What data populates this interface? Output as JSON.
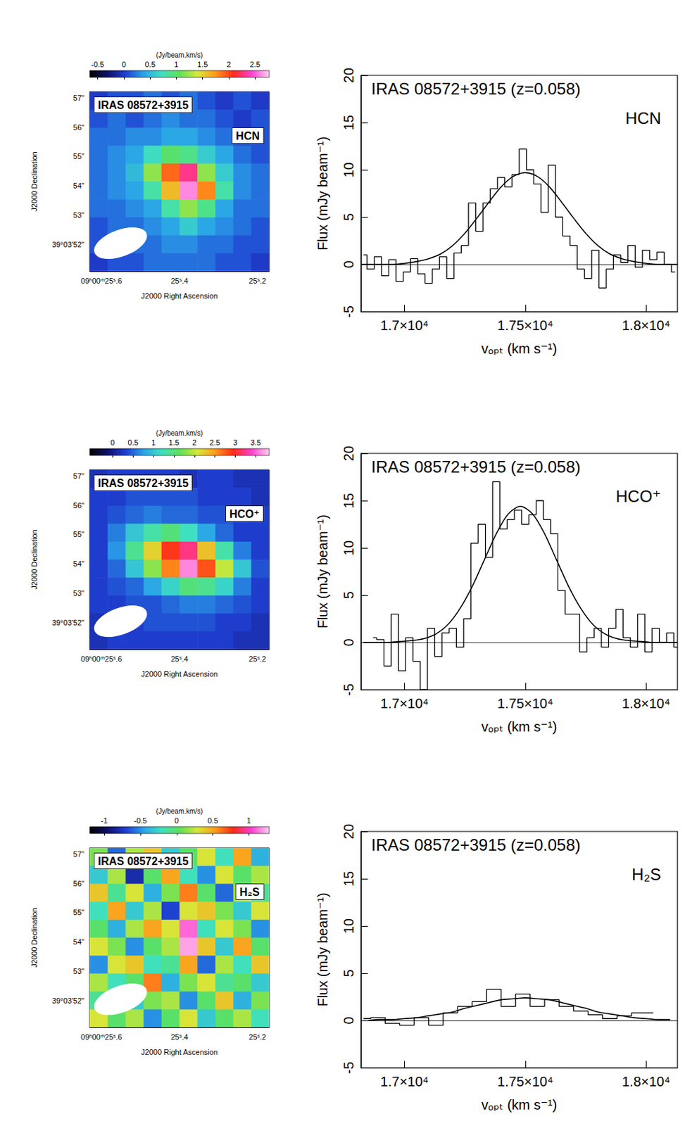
{
  "chart_data": [
    {
      "type": "heatmap",
      "annotations": [
        "IRAS 08572+3915",
        "HCN"
      ],
      "x_label": "J2000 Right Ascension",
      "y_label": "J2000 Declination",
      "xlim": [
        25.63,
        25.17
      ],
      "ylim": [
        51.1,
        57.2
      ],
      "xticks": [
        {
          "value": 25.6,
          "label": "09ʰ00ᵐ25ˢ.6"
        },
        {
          "value": 25.4,
          "label": "25ˢ.4"
        },
        {
          "value": 25.2,
          "label": "25ˢ.2"
        }
      ],
      "yticks": [
        {
          "value": 52,
          "label": "39°03'52\""
        },
        {
          "value": 53,
          "label": "53\""
        },
        {
          "value": 54,
          "label": "54\""
        },
        {
          "value": 55,
          "label": "55\""
        },
        {
          "value": 56,
          "label": "56\""
        },
        {
          "value": 57,
          "label": "57\""
        }
      ],
      "x_edges": [
        25.63,
        25.584,
        25.538,
        25.492,
        25.446,
        25.4,
        25.354,
        25.308,
        25.262,
        25.216,
        25.17
      ],
      "y_edges": [
        57.2,
        56.59,
        55.98,
        55.37,
        54.76,
        54.15,
        53.54,
        52.93,
        52.32,
        51.71,
        51.1
      ],
      "cells": [
        [
          0.0,
          0.1,
          0.1,
          0.2,
          0.1,
          0.2,
          0.1,
          0.0,
          0.1,
          0.0
        ],
        [
          0.1,
          0.2,
          0.1,
          0.2,
          0.3,
          0.2,
          0.2,
          0.1,
          0.0,
          0.1
        ],
        [
          0.2,
          0.2,
          0.3,
          0.3,
          0.4,
          0.4,
          0.3,
          0.2,
          0.1,
          0.1
        ],
        [
          0.2,
          0.3,
          0.4,
          0.7,
          1.0,
          0.9,
          0.6,
          0.4,
          0.2,
          0.1
        ],
        [
          0.2,
          0.3,
          0.5,
          1.2,
          1.9,
          2.3,
          1.2,
          0.6,
          0.3,
          0.2
        ],
        [
          0.2,
          0.3,
          0.4,
          0.8,
          1.6,
          2.6,
          1.8,
          0.8,
          0.3,
          0.2
        ],
        [
          0.2,
          0.2,
          0.3,
          0.4,
          0.8,
          1.2,
          0.9,
          0.4,
          0.2,
          0.2
        ],
        [
          0.1,
          0.2,
          0.2,
          0.3,
          0.4,
          0.6,
          0.4,
          0.3,
          0.2,
          0.1
        ],
        [
          0.1,
          0.1,
          0.2,
          0.2,
          0.3,
          0.3,
          0.2,
          0.2,
          0.1,
          0.1
        ],
        [
          0.0,
          0.1,
          0.1,
          0.2,
          0.2,
          0.2,
          0.2,
          0.1,
          0.1,
          0.0
        ]
      ],
      "colorbar": {
        "label": "(Jy/beam.km/s)",
        "range": [
          -0.65,
          2.77
        ],
        "ticks": [
          -0.5,
          0,
          0.5,
          1,
          1.5,
          2,
          2.5
        ]
      }
    },
    {
      "type": "line",
      "annotations": [
        "IRAS 08572+3915 (z=0.058)",
        "HCN"
      ],
      "x_label": "vₒₚₜ (km s⁻¹)",
      "y_label": "Flux (mJy beam⁻¹)",
      "xlim": [
        16820,
        18130
      ],
      "ylim": [
        -5,
        20
      ],
      "xticks": [
        {
          "value": 17000,
          "label": "1.7×10⁴"
        },
        {
          "value": 17500,
          "label": "1.75×10⁴"
        },
        {
          "value": 18000,
          "label": "1.8×10⁴"
        }
      ],
      "yticks": [
        -5,
        0,
        5,
        10,
        15,
        20
      ],
      "series": [
        {
          "type": "step",
          "color": "#000000",
          "x": [
            16830,
            16860,
            16890,
            16920,
            16950,
            16980,
            17010,
            17040,
            17070,
            17100,
            17130,
            17160,
            17190,
            17220,
            17250,
            17280,
            17310,
            17340,
            17370,
            17400,
            17430,
            17460,
            17490,
            17520,
            17550,
            17580,
            17610,
            17640,
            17670,
            17700,
            17730,
            17760,
            17790,
            17820,
            17850,
            17880,
            17910,
            17940,
            17970,
            18000,
            18030,
            18060,
            18090,
            18120
          ],
          "values": [
            1.0,
            -0.5,
            0.8,
            -1.2,
            0.5,
            -1.8,
            -0.8,
            0.6,
            -1.0,
            -2.0,
            -0.5,
            0.8,
            -1.5,
            1.2,
            2.0,
            6.5,
            3.5,
            6.5,
            8.0,
            9.2,
            8.2,
            9.5,
            12.2,
            10.0,
            8.5,
            5.5,
            10.5,
            5.0,
            3.0,
            2.0,
            -0.5,
            -1.5,
            1.5,
            -2.5,
            -0.5,
            1.0,
            0.2,
            2.0,
            -0.3,
            1.5,
            0.5,
            1.3,
            0.0,
            -0.8
          ]
        },
        {
          "type": "line",
          "color": "#000000",
          "x": [
            16820,
            16850,
            16900,
            16950,
            17000,
            17050,
            17100,
            17150,
            17200,
            17250,
            17300,
            17350,
            17400,
            17450,
            17500,
            17550,
            17600,
            17650,
            17700,
            17750,
            17800,
            17850,
            17900,
            17950,
            18000,
            18050,
            18100,
            18130
          ],
          "values": [
            0,
            0,
            0,
            0,
            0.1,
            0.3,
            0.6,
            1.1,
            2.0,
            3.3,
            4.9,
            6.6,
            8.2,
            9.3,
            9.7,
            9.3,
            8.2,
            6.6,
            4.9,
            3.3,
            2.0,
            1.1,
            0.6,
            0.3,
            0.1,
            0,
            0,
            0
          ]
        }
      ]
    },
    {
      "type": "heatmap",
      "annotations": [
        "IRAS 08572+3915",
        "HCO⁺"
      ],
      "x_label": "J2000 Right Ascension",
      "y_label": "J2000 Declination",
      "xlim": [
        25.63,
        25.17
      ],
      "ylim": [
        51.1,
        57.2
      ],
      "xticks": [
        {
          "value": 25.6,
          "label": "09ʰ00ᵐ25ˢ.6"
        },
        {
          "value": 25.4,
          "label": "25ˢ.4"
        },
        {
          "value": 25.2,
          "label": "25ˢ.2"
        }
      ],
      "yticks": [
        {
          "value": 52,
          "label": "39°03'52\""
        },
        {
          "value": 53,
          "label": "53\""
        },
        {
          "value": 54,
          "label": "54\""
        },
        {
          "value": 55,
          "label": "55\""
        },
        {
          "value": 56,
          "label": "56\""
        },
        {
          "value": 57,
          "label": "57\""
        }
      ],
      "x_edges": [
        25.63,
        25.584,
        25.538,
        25.492,
        25.446,
        25.4,
        25.354,
        25.308,
        25.262,
        25.216,
        25.17
      ],
      "y_edges": [
        57.2,
        56.59,
        55.98,
        55.37,
        54.76,
        54.15,
        53.54,
        52.93,
        52.32,
        51.71,
        51.1
      ],
      "cells": [
        [
          0.2,
          0.3,
          0.3,
          0.3,
          0.3,
          0.2,
          0.3,
          0.3,
          0.2,
          0.2
        ],
        [
          0.3,
          0.3,
          0.4,
          0.4,
          0.4,
          0.4,
          0.3,
          0.3,
          0.3,
          0.2
        ],
        [
          0.3,
          0.4,
          0.5,
          0.6,
          0.5,
          0.5,
          0.4,
          0.4,
          0.3,
          0.3
        ],
        [
          0.3,
          0.6,
          1.0,
          1.3,
          1.5,
          1.2,
          0.8,
          0.5,
          0.3,
          0.3
        ],
        [
          0.3,
          0.7,
          1.4,
          2.2,
          2.9,
          3.2,
          2.3,
          1.3,
          0.6,
          0.3
        ],
        [
          0.3,
          0.5,
          1.0,
          1.8,
          2.6,
          3.6,
          2.8,
          2.0,
          1.0,
          0.4
        ],
        [
          0.3,
          0.4,
          0.5,
          0.8,
          1.1,
          1.5,
          1.4,
          1.1,
          0.6,
          0.3
        ],
        [
          0.3,
          0.3,
          0.4,
          0.4,
          0.5,
          0.6,
          0.6,
          0.5,
          0.4,
          0.3
        ],
        [
          0.2,
          0.3,
          0.3,
          0.4,
          0.4,
          0.4,
          0.4,
          0.3,
          0.3,
          0.2
        ],
        [
          0.2,
          0.3,
          0.3,
          0.3,
          0.3,
          0.3,
          0.3,
          0.3,
          0.2,
          0.2
        ]
      ],
      "colorbar": {
        "label": "(Jy/beam.km/s)",
        "range": [
          -0.56,
          3.83
        ],
        "ticks": [
          0,
          0.5,
          1,
          1.5,
          2,
          2.5,
          3,
          3.5
        ]
      }
    },
    {
      "type": "line",
      "annotations": [
        "IRAS 08572+3915 (z=0.058)",
        "HCO⁺"
      ],
      "x_label": "vₒₚₜ (km s⁻¹)",
      "y_label": "Flux (mJy beam⁻¹)",
      "xlim": [
        16820,
        18130
      ],
      "ylim": [
        -5,
        20
      ],
      "xticks": [
        {
          "value": 17000,
          "label": "1.7×10⁴"
        },
        {
          "value": 17500,
          "label": "1.75×10⁴"
        },
        {
          "value": 18000,
          "label": "1.8×10⁴"
        }
      ],
      "yticks": [
        -5,
        0,
        5,
        10,
        15,
        20
      ],
      "series": [
        {
          "type": "step",
          "color": "#000000",
          "x": [
            16870,
            16900,
            16930,
            16960,
            16990,
            17020,
            17050,
            17080,
            17110,
            17140,
            17170,
            17200,
            17230,
            17260,
            17290,
            17320,
            17350,
            17380,
            17410,
            17440,
            17470,
            17500,
            17530,
            17560,
            17590,
            17620,
            17650,
            17680,
            17710,
            17740,
            17770,
            17800,
            17830,
            17860,
            17890,
            17920,
            17950,
            17980,
            18010,
            18040,
            18070,
            18100,
            18130
          ],
          "values": [
            0.5,
            0.3,
            -2.5,
            3.0,
            -3.0,
            0.5,
            -2.0,
            -5.0,
            1.5,
            -1.5,
            1.0,
            1.5,
            -0.5,
            2.5,
            10.5,
            12.5,
            9.0,
            17.0,
            12.0,
            13.0,
            14.0,
            12.5,
            13.5,
            15.0,
            13.0,
            11.5,
            5.5,
            3.0,
            3.0,
            -1.0,
            0.5,
            1.5,
            -0.5,
            1.5,
            3.5,
            0.5,
            -0.5,
            3.0,
            -1.0,
            1.5,
            0.0,
            1.0,
            -0.5
          ]
        },
        {
          "type": "line",
          "color": "#000000",
          "x": [
            16830,
            16880,
            16930,
            16980,
            17030,
            17080,
            17130,
            17180,
            17230,
            17280,
            17330,
            17380,
            17430,
            17480,
            17530,
            17580,
            17630,
            17680,
            17730,
            17780,
            17830,
            17880,
            17930,
            17980,
            18030,
            18080,
            18130
          ],
          "values": [
            0,
            0,
            0,
            0.1,
            0.2,
            0.4,
            0.9,
            1.9,
            3.6,
            5.9,
            8.7,
            11.5,
            13.6,
            14.4,
            13.6,
            11.5,
            8.7,
            5.9,
            3.6,
            1.9,
            0.9,
            0.4,
            0.2,
            0.1,
            0,
            0,
            0
          ]
        }
      ]
    },
    {
      "type": "heatmap",
      "annotations": [
        "IRAS 08572+3915",
        "H₂S"
      ],
      "x_label": "J2000 Right Ascension",
      "y_label": "J2000 Declination",
      "xlim": [
        25.63,
        25.17
      ],
      "ylim": [
        51.1,
        57.2
      ],
      "xticks": [
        {
          "value": 25.6,
          "label": "09ʰ00ᵐ25ˢ.6"
        },
        {
          "value": 25.4,
          "label": "25ˢ.4"
        },
        {
          "value": 25.2,
          "label": "25ˢ.2"
        }
      ],
      "yticks": [
        {
          "value": 52,
          "label": "39°03'52\""
        },
        {
          "value": 53,
          "label": "53\""
        },
        {
          "value": 54,
          "label": "54\""
        },
        {
          "value": 55,
          "label": "55\""
        },
        {
          "value": 56,
          "label": "56\""
        },
        {
          "value": 57,
          "label": "57\""
        }
      ],
      "x_edges": [
        25.63,
        25.584,
        25.538,
        25.492,
        25.446,
        25.4,
        25.354,
        25.308,
        25.262,
        25.216,
        25.17
      ],
      "y_edges": [
        57.2,
        56.59,
        55.98,
        55.37,
        54.76,
        54.15,
        53.54,
        52.93,
        52.32,
        51.71,
        51.1
      ],
      "cells": [
        [
          0.1,
          -0.6,
          0.2,
          0.4,
          -0.3,
          0.0,
          0.3,
          -0.2,
          0.5,
          -0.4
        ],
        [
          -0.3,
          0.2,
          -0.8,
          0.0,
          0.5,
          -0.2,
          -0.5,
          0.3,
          0.0,
          0.2
        ],
        [
          0.4,
          -0.1,
          0.3,
          -0.4,
          0.1,
          0.6,
          0.0,
          -0.6,
          0.2,
          -0.1
        ],
        [
          -0.2,
          0.5,
          -0.3,
          0.2,
          -0.7,
          0.3,
          0.4,
          0.1,
          -0.3,
          0.3
        ],
        [
          0.0,
          -0.4,
          0.2,
          0.5,
          0.3,
          1.1,
          -0.2,
          0.3,
          0.1,
          -0.5
        ],
        [
          0.3,
          0.1,
          -0.5,
          0.0,
          0.2,
          1.2,
          0.4,
          -0.3,
          0.5,
          0.0
        ],
        [
          -0.5,
          0.3,
          0.4,
          -0.2,
          -0.1,
          0.5,
          -0.6,
          0.2,
          -0.2,
          0.4
        ],
        [
          0.2,
          -0.2,
          0.0,
          0.6,
          -0.4,
          0.1,
          0.3,
          -0.1,
          0.0,
          -0.3
        ],
        [
          -0.1,
          0.4,
          -0.3,
          0.1,
          0.2,
          -0.5,
          0.0,
          0.4,
          -0.4,
          0.1
        ],
        [
          0.3,
          0.0,
          0.2,
          -0.5,
          0.0,
          0.3,
          -0.3,
          0.0,
          0.2,
          -0.2
        ]
      ],
      "colorbar": {
        "label": "(Jy/beam.km/s)",
        "range": [
          -1.2,
          1.28
        ],
        "ticks": [
          -1,
          -0.5,
          0,
          0.5,
          1
        ]
      }
    },
    {
      "type": "line",
      "annotations": [
        "IRAS 08572+3915 (z=0.058)",
        "H₂S"
      ],
      "x_label": "vₒₚₜ (km s⁻¹)",
      "y_label": "Flux (mJy beam⁻¹)",
      "xlim": [
        16820,
        18130
      ],
      "ylim": [
        -5,
        20
      ],
      "xticks": [
        {
          "value": 17000,
          "label": "1.7×10⁴"
        },
        {
          "value": 17500,
          "label": "1.75×10⁴"
        },
        {
          "value": 18000,
          "label": "1.8×10⁴"
        }
      ],
      "yticks": [
        -5,
        0,
        5,
        10,
        15,
        20
      ],
      "series": [
        {
          "type": "step",
          "color": "#000000",
          "x": [
            16830,
            16890,
            16950,
            17010,
            17070,
            17130,
            17190,
            17250,
            17310,
            17370,
            17430,
            17490,
            17550,
            17610,
            17670,
            17730,
            17790,
            17850,
            17910,
            17970,
            18030
          ],
          "values": [
            0.2,
            0.3,
            -0.3,
            -0.5,
            0.3,
            -0.5,
            0.8,
            1.5,
            2.0,
            3.3,
            1.5,
            2.8,
            1.5,
            2.2,
            1.5,
            1.0,
            0.6,
            0.2,
            0.5,
            0.8,
            0.8
          ]
        },
        {
          "type": "line",
          "color": "#000000",
          "x": [
            16850,
            16900,
            16950,
            17000,
            17050,
            17100,
            17150,
            17200,
            17250,
            17300,
            17350,
            17400,
            17450,
            17500,
            17550,
            17600,
            17650,
            17700,
            17750,
            17800,
            17850,
            17900,
            17950,
            18000,
            18050,
            18100
          ],
          "values": [
            0.0,
            0.1,
            0.1,
            0.2,
            0.3,
            0.5,
            0.7,
            0.9,
            1.3,
            1.6,
            1.9,
            2.2,
            2.3,
            2.4,
            2.3,
            2.2,
            1.9,
            1.6,
            1.3,
            0.9,
            0.7,
            0.5,
            0.3,
            0.2,
            0.1,
            0.1
          ]
        }
      ]
    }
  ]
}
